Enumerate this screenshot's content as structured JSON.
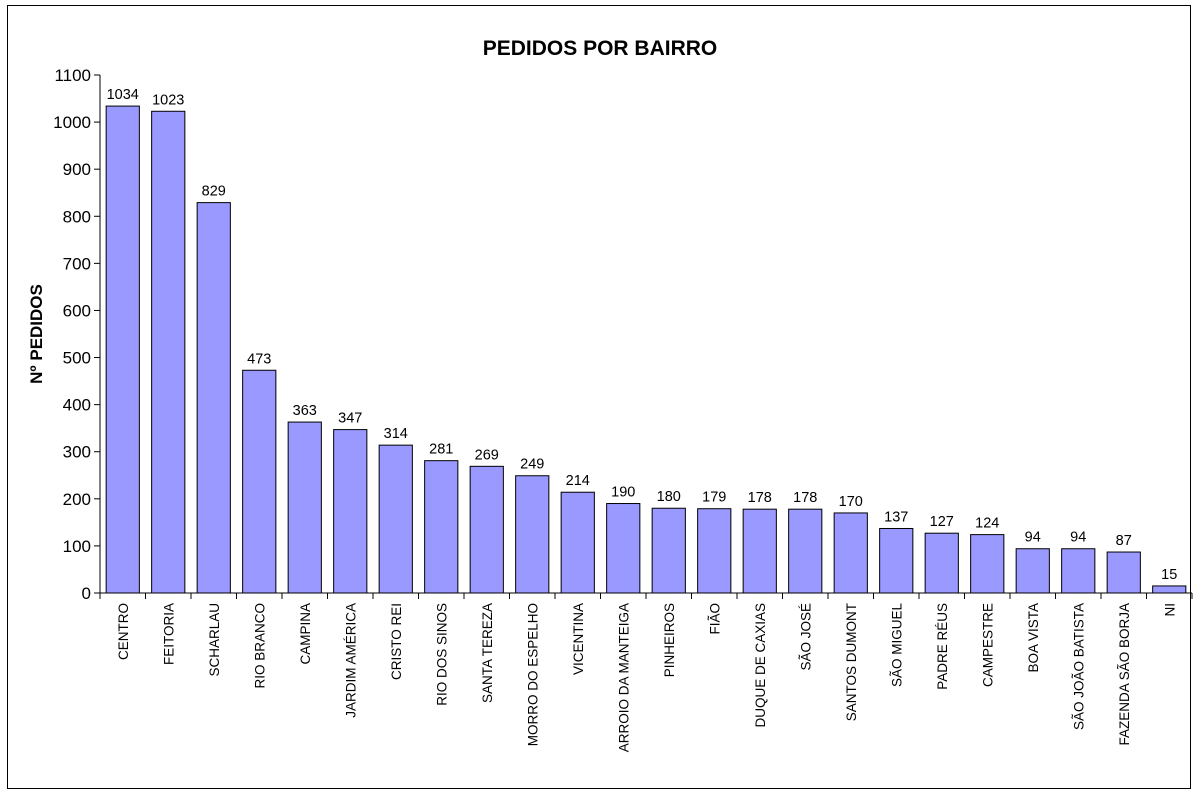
{
  "chart_data": {
    "type": "bar",
    "title": "PEDIDOS POR BAIRRO",
    "xlabel": "",
    "ylabel": "Nº PEDIDOS",
    "ylim": [
      0,
      1100
    ],
    "yticks": [
      0,
      100,
      200,
      300,
      400,
      500,
      600,
      700,
      800,
      900,
      1000,
      1100
    ],
    "grid": false,
    "legend": "none",
    "bar_color": "#9999ff",
    "categories": [
      "CENTRO",
      "FEITORIA",
      "SCHARLAU",
      "RIO BRANCO",
      "CAMPINA",
      "JARDIM AMÉRICA",
      "CRISTO REI",
      "RIO DOS SINOS",
      "SANTA TEREZA",
      "MORRO DO ESPELHO",
      "VICENTINA",
      "ARROIO DA MANTEIGA",
      "PINHEIROS",
      "FIÃO",
      "DUQUE DE CAXIAS",
      "SÃO JOSÉ",
      "SANTOS DUMONT",
      "SÃO MIGUEL",
      "PADRE RÉUS",
      "CAMPESTRE",
      "BOA VISTA",
      "SÃO JOÃO BATISTA",
      "FAZENDA SÃO BORJA",
      "NI"
    ],
    "values": [
      1034,
      1023,
      829,
      473,
      363,
      347,
      314,
      281,
      269,
      249,
      214,
      190,
      180,
      179,
      178,
      178,
      170,
      137,
      127,
      124,
      94,
      94,
      87,
      15
    ]
  }
}
